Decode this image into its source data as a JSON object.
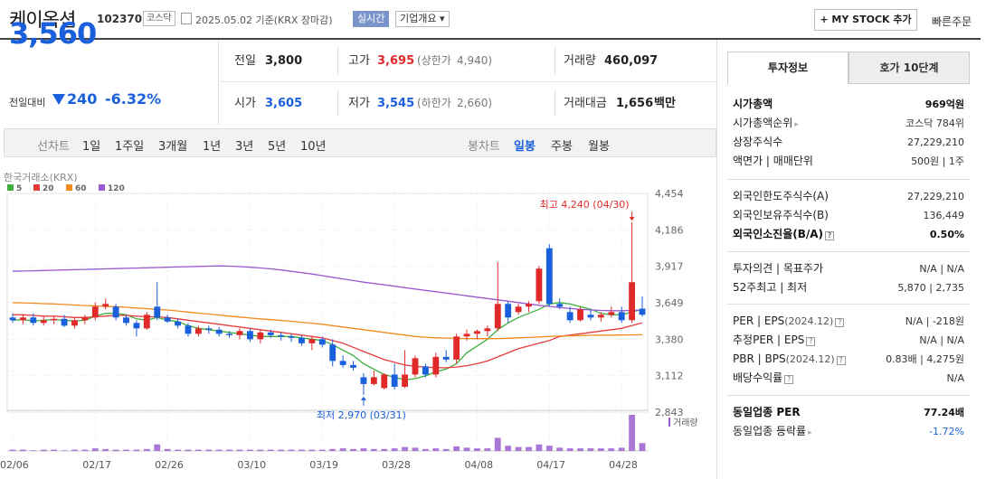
{
  "header": {
    "name": "케이옥션",
    "code": "102370",
    "market": "코스닥",
    "date": "2025.05.02  기준(KRX 장마감)",
    "realtime": "실시간",
    "company_info": "기업개요 ▾",
    "mystock": "+ MY STOCK 추가",
    "quick_order": "빠른주문"
  },
  "price": {
    "current": "3,560",
    "change_label": "전일대비",
    "change": "240",
    "change_pct": "-6.32%"
  },
  "stats": {
    "prev_label": "전일",
    "prev": "3,800",
    "high_label": "고가",
    "high": "3,695",
    "upper_label": "(상한가",
    "upper": "4,940)",
    "volume_label": "거래량",
    "volume": "460,097",
    "open_label": "시가",
    "open": "3,605",
    "low_label": "저가",
    "low": "3,545",
    "lower_label": "(하한가",
    "lower": "2,660)",
    "amount_label": "거래대금",
    "amount": "1,656",
    "amount_unit": "백만"
  },
  "periods": {
    "line_label": "선차트",
    "line": [
      "1일",
      "1주일",
      "3개월",
      "1년",
      "3년",
      "5년",
      "10년"
    ],
    "candle_label": "봉차트",
    "candle": [
      "일봉",
      "주봉",
      "월봉"
    ],
    "selected": "일봉"
  },
  "chart_data": {
    "type": "candlestick",
    "source": "한국거래소(KRX)",
    "ma_legend": [
      {
        "name": "5",
        "color": "#3fae3f"
      },
      {
        "name": "20",
        "color": "#e63c3c"
      },
      {
        "name": "60",
        "color": "#f08a1c"
      },
      {
        "name": "120",
        "color": "#9b59d0"
      }
    ],
    "y_ticks": [
      4454,
      4186,
      3917,
      3649,
      3380,
      3112,
      2843
    ],
    "y_tick_labels": [
      "4,454",
      "4,186",
      "3,917",
      "3,649",
      "3,380",
      "3,112",
      "2,843"
    ],
    "x_ticks": [
      "02/06",
      "02/17",
      "02/26",
      "03/10",
      "03/19",
      "03/28",
      "04/08",
      "04/17",
      "04/28"
    ],
    "max_annotation": "최고 4,240 (04/30)",
    "min_annotation": "최저 2,970 (03/31)",
    "volume_label": "거래량",
    "candles": [
      {
        "o": 3540,
        "h": 3570,
        "l": 3500,
        "c": 3520
      },
      {
        "o": 3520,
        "h": 3560,
        "l": 3490,
        "c": 3540
      },
      {
        "o": 3540,
        "h": 3570,
        "l": 3480,
        "c": 3500
      },
      {
        "o": 3500,
        "h": 3550,
        "l": 3480,
        "c": 3520
      },
      {
        "o": 3520,
        "h": 3545,
        "l": 3490,
        "c": 3530
      },
      {
        "o": 3530,
        "h": 3560,
        "l": 3470,
        "c": 3480
      },
      {
        "o": 3480,
        "h": 3540,
        "l": 3460,
        "c": 3520
      },
      {
        "o": 3520,
        "h": 3560,
        "l": 3490,
        "c": 3540
      },
      {
        "o": 3540,
        "h": 3650,
        "l": 3520,
        "c": 3620
      },
      {
        "o": 3620,
        "h": 3680,
        "l": 3600,
        "c": 3640
      },
      {
        "o": 3620,
        "h": 3640,
        "l": 3520,
        "c": 3540
      },
      {
        "o": 3540,
        "h": 3560,
        "l": 3480,
        "c": 3500
      },
      {
        "o": 3500,
        "h": 3520,
        "l": 3400,
        "c": 3460
      },
      {
        "o": 3460,
        "h": 3580,
        "l": 3450,
        "c": 3560
      },
      {
        "o": 3620,
        "h": 3800,
        "l": 3520,
        "c": 3540
      },
      {
        "o": 3540,
        "h": 3560,
        "l": 3500,
        "c": 3510
      },
      {
        "o": 3510,
        "h": 3530,
        "l": 3460,
        "c": 3480
      },
      {
        "o": 3480,
        "h": 3500,
        "l": 3400,
        "c": 3420
      },
      {
        "o": 3420,
        "h": 3480,
        "l": 3400,
        "c": 3460
      },
      {
        "o": 3460,
        "h": 3480,
        "l": 3420,
        "c": 3450
      },
      {
        "o": 3450,
        "h": 3470,
        "l": 3400,
        "c": 3420
      },
      {
        "o": 3420,
        "h": 3440,
        "l": 3390,
        "c": 3410
      },
      {
        "o": 3410,
        "h": 3460,
        "l": 3380,
        "c": 3440
      },
      {
        "o": 3440,
        "h": 3460,
        "l": 3360,
        "c": 3380
      },
      {
        "o": 3380,
        "h": 3450,
        "l": 3350,
        "c": 3430
      },
      {
        "o": 3430,
        "h": 3450,
        "l": 3390,
        "c": 3410
      },
      {
        "o": 3410,
        "h": 3430,
        "l": 3370,
        "c": 3400
      },
      {
        "o": 3400,
        "h": 3420,
        "l": 3360,
        "c": 3390
      },
      {
        "o": 3390,
        "h": 3410,
        "l": 3330,
        "c": 3350
      },
      {
        "o": 3350,
        "h": 3400,
        "l": 3300,
        "c": 3380
      },
      {
        "o": 3380,
        "h": 3400,
        "l": 3320,
        "c": 3340
      },
      {
        "o": 3340,
        "h": 3380,
        "l": 3180,
        "c": 3220
      },
      {
        "o": 3220,
        "h": 3260,
        "l": 3170,
        "c": 3190
      },
      {
        "o": 3190,
        "h": 3220,
        "l": 3150,
        "c": 3170
      },
      {
        "o": 3100,
        "h": 3130,
        "l": 2970,
        "c": 3050
      },
      {
        "o": 3050,
        "h": 3150,
        "l": 3040,
        "c": 3100
      },
      {
        "o": 3020,
        "h": 3130,
        "l": 3010,
        "c": 3120
      },
      {
        "o": 3120,
        "h": 3200,
        "l": 3010,
        "c": 3030
      },
      {
        "o": 3030,
        "h": 3300,
        "l": 3020,
        "c": 3120
      },
      {
        "o": 3120,
        "h": 3260,
        "l": 3100,
        "c": 3240
      },
      {
        "o": 3180,
        "h": 3200,
        "l": 3100,
        "c": 3120
      },
      {
        "o": 3120,
        "h": 3280,
        "l": 3100,
        "c": 3250
      },
      {
        "o": 3250,
        "h": 3300,
        "l": 3210,
        "c": 3230
      },
      {
        "o": 3230,
        "h": 3420,
        "l": 3200,
        "c": 3400
      },
      {
        "o": 3400,
        "h": 3450,
        "l": 3370,
        "c": 3420
      },
      {
        "o": 3420,
        "h": 3450,
        "l": 3380,
        "c": 3440
      },
      {
        "o": 3440,
        "h": 3480,
        "l": 3400,
        "c": 3460
      },
      {
        "o": 3460,
        "h": 3950,
        "l": 3440,
        "c": 3640
      },
      {
        "o": 3640,
        "h": 3660,
        "l": 3500,
        "c": 3540
      },
      {
        "o": 3580,
        "h": 3640,
        "l": 3560,
        "c": 3620
      },
      {
        "o": 3620,
        "h": 3660,
        "l": 3580,
        "c": 3640
      },
      {
        "o": 3660,
        "h": 3920,
        "l": 3640,
        "c": 3900
      },
      {
        "o": 4050,
        "h": 4080,
        "l": 3620,
        "c": 3640
      },
      {
        "o": 3640,
        "h": 3680,
        "l": 3600,
        "c": 3620
      },
      {
        "o": 3580,
        "h": 3620,
        "l": 3500,
        "c": 3520
      },
      {
        "o": 3520,
        "h": 3620,
        "l": 3510,
        "c": 3600
      },
      {
        "o": 3560,
        "h": 3600,
        "l": 3520,
        "c": 3540
      },
      {
        "o": 3540,
        "h": 3580,
        "l": 3510,
        "c": 3560
      },
      {
        "o": 3560,
        "h": 3620,
        "l": 3540,
        "c": 3580
      },
      {
        "o": 3580,
        "h": 3620,
        "l": 3500,
        "c": 3520
      },
      {
        "o": 3520,
        "h": 4240,
        "l": 3500,
        "c": 3800
      },
      {
        "o": 3605,
        "h": 3695,
        "l": 3545,
        "c": 3560
      }
    ],
    "ma": {
      "ma5": [
        3520,
        3525,
        3515,
        3520,
        3525,
        3520,
        3515,
        3520,
        3550,
        3570,
        3570,
        3560,
        3530,
        3520,
        3540,
        3520,
        3510,
        3480,
        3460,
        3450,
        3440,
        3430,
        3420,
        3410,
        3400,
        3400,
        3400,
        3400,
        3390,
        3380,
        3370,
        3340,
        3300,
        3260,
        3200,
        3160,
        3120,
        3100,
        3080,
        3090,
        3110,
        3140,
        3160,
        3200,
        3280,
        3330,
        3380,
        3450,
        3500,
        3540,
        3570,
        3600,
        3640,
        3650,
        3640,
        3620,
        3600,
        3570,
        3560,
        3560,
        3580,
        3600
      ],
      "ma20": [
        3560,
        3560,
        3555,
        3550,
        3550,
        3545,
        3540,
        3540,
        3545,
        3550,
        3555,
        3555,
        3550,
        3545,
        3545,
        3540,
        3530,
        3520,
        3510,
        3500,
        3490,
        3480,
        3470,
        3460,
        3450,
        3440,
        3430,
        3420,
        3410,
        3400,
        3390,
        3370,
        3350,
        3320,
        3290,
        3260,
        3230,
        3210,
        3190,
        3180,
        3175,
        3170,
        3170,
        3175,
        3185,
        3200,
        3220,
        3250,
        3280,
        3310,
        3330,
        3350,
        3370,
        3400,
        3410,
        3420,
        3430,
        3440,
        3450,
        3460,
        3480,
        3500
      ],
      "ma60": [
        3650,
        3648,
        3645,
        3642,
        3640,
        3636,
        3632,
        3628,
        3625,
        3622,
        3620,
        3615,
        3610,
        3605,
        3600,
        3595,
        3588,
        3580,
        3572,
        3565,
        3558,
        3550,
        3543,
        3536,
        3530,
        3524,
        3518,
        3512,
        3505,
        3498,
        3490,
        3480,
        3470,
        3460,
        3450,
        3440,
        3430,
        3420,
        3410,
        3400,
        3395,
        3390,
        3388,
        3386,
        3385,
        3384,
        3384,
        3385,
        3387,
        3390,
        3393,
        3396,
        3400,
        3403,
        3405,
        3407,
        3409,
        3410,
        3410,
        3411,
        3412,
        3413
      ],
      "ma120": [
        3880,
        3882,
        3884,
        3886,
        3888,
        3890,
        3892,
        3894,
        3896,
        3898,
        3900,
        3902,
        3904,
        3906,
        3908,
        3910,
        3912,
        3914,
        3916,
        3918,
        3920,
        3918,
        3915,
        3910,
        3905,
        3898,
        3890,
        3880,
        3870,
        3860,
        3848,
        3836,
        3824,
        3812,
        3800,
        3790,
        3780,
        3770,
        3760,
        3750,
        3740,
        3730,
        3720,
        3710,
        3700,
        3690,
        3680,
        3670,
        3660,
        3650,
        3640,
        3630,
        3622,
        3614,
        3606,
        3600,
        3596,
        3592,
        3590,
        3590,
        3592,
        3596
      ]
    },
    "volumes": [
      2,
      2,
      1,
      2,
      2,
      1,
      2,
      2,
      4,
      3,
      2,
      2,
      2,
      3,
      10,
      3,
      2,
      2,
      2,
      2,
      2,
      2,
      2,
      2,
      2,
      2,
      2,
      2,
      2,
      2,
      2,
      3,
      4,
      3,
      4,
      3,
      3,
      4,
      6,
      5,
      3,
      4,
      3,
      7,
      5,
      4,
      4,
      20,
      8,
      6,
      6,
      10,
      8,
      5,
      4,
      4,
      4,
      4,
      4,
      5,
      55,
      12
    ]
  },
  "right": {
    "tabs": [
      "투자정보",
      "호가 10단계"
    ],
    "rows": [
      {
        "l": "시가총액",
        "r": "969억원"
      },
      {
        "l": "시가총액순위",
        "r": "코스닥 784위"
      },
      {
        "l": "상장주식수",
        "r": "27,229,210"
      },
      {
        "l": "액면가 | 매매단위",
        "r": "500원 | 1주"
      },
      {
        "l": "외국인한도주식수(A)",
        "r": "27,229,210"
      },
      {
        "l": "외국인보유주식수(B)",
        "r": "136,449"
      },
      {
        "l": "외국인소진율(B/A)",
        "r": "0.50%"
      },
      {
        "l": "투자의견 | 목표주가",
        "r": "N/A | N/A"
      },
      {
        "l": "52주최고 | 최저",
        "r": "5,870 | 2,735"
      },
      {
        "l": "PER | EPS",
        "l2": "(2024.12)",
        "r": "N/A | -218원"
      },
      {
        "l": "추정PER | EPS",
        "r": "N/A | N/A"
      },
      {
        "l": "PBR | BPS",
        "l2": "(2024.12)",
        "r": "0.83배 | 4,275원"
      },
      {
        "l": "배당수익률",
        "r": "N/A"
      },
      {
        "l": "동일업종 PER",
        "r": "77.24배"
      },
      {
        "l": "동일업종 등락률",
        "r": "-1.72%"
      }
    ]
  }
}
